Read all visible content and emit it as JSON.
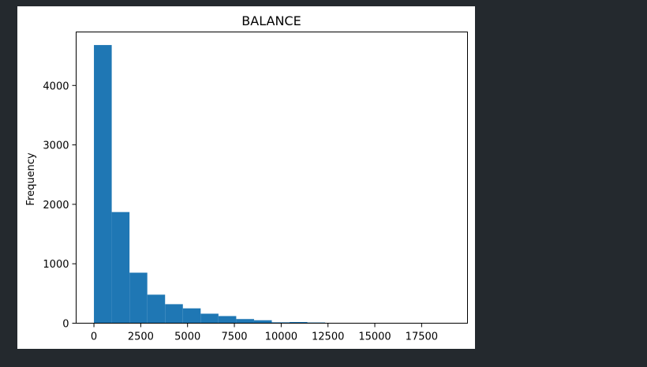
{
  "chart_data": {
    "type": "bar",
    "title": "BALANCE",
    "xlabel": "",
    "ylabel": "Frequency",
    "xlim": [
      -950,
      19950
    ],
    "ylim": [
      0,
      4900
    ],
    "x_ticks": [
      0,
      2500,
      5000,
      7500,
      10000,
      12500,
      15000,
      17500
    ],
    "x_tick_labels": [
      "0",
      "2500",
      "5000",
      "7500",
      "10000",
      "12500",
      "15000",
      "17500"
    ],
    "y_ticks": [
      0,
      1000,
      2000,
      3000,
      4000
    ],
    "y_tick_labels": [
      "0",
      "1000",
      "2000",
      "3000",
      "4000"
    ],
    "grid": false,
    "color": "#1f77b4",
    "bin_edges": [
      0,
      950,
      1900,
      2850,
      3800,
      4750,
      5700,
      6650,
      7600,
      8550,
      9500,
      10450,
      11400,
      12350,
      13300,
      14250,
      15200,
      16150,
      17100,
      18050,
      19000
    ],
    "values": [
      4680,
      1870,
      850,
      480,
      320,
      250,
      160,
      120,
      70,
      50,
      15,
      20,
      12,
      5,
      2,
      3,
      2,
      1,
      1,
      1
    ]
  }
}
